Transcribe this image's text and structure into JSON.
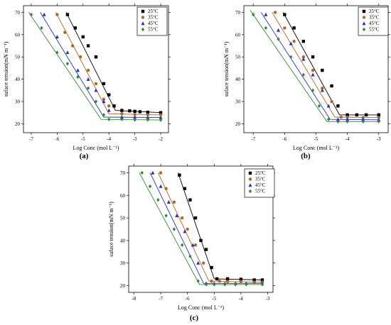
{
  "figure": {
    "panel_labels": [
      "(a)",
      "(b)",
      "(c)"
    ]
  },
  "chart_data": [
    {
      "type": "scatter",
      "panel": "(a)",
      "xlabel": "Log Conc (mol L⁻¹)",
      "ylabel": "suface tension(mN m⁻¹)",
      "xlim": [
        -7.3,
        -1.7
      ],
      "ylim": [
        16,
        73
      ],
      "xticks": [
        -7,
        -6,
        -5,
        -4,
        -3,
        -2
      ],
      "yticks": [
        20,
        30,
        40,
        50,
        60,
        70
      ],
      "legend_position": "top-right",
      "colors": [
        "#000000",
        "#b5651d",
        "#1f2fd6",
        "#2f8a2f"
      ],
      "markers": [
        "square",
        "circle",
        "triangle",
        "diamond"
      ],
      "series": [
        {
          "name": "25°C",
          "x": [
            -5.6,
            -5.3,
            -5.0,
            -4.8,
            -4.5,
            -4.2,
            -4.0,
            -3.8,
            -3.5,
            -3.2,
            -3.0,
            -2.8,
            -2.5,
            -2.0
          ],
          "y": [
            69,
            63,
            59,
            55,
            50,
            38,
            33,
            28,
            26,
            25.8,
            25.6,
            25.4,
            25.2,
            25
          ],
          "fit": [
            [
              -5.65,
              70
            ],
            [
              -3.75,
              26
            ],
            [
              -2.0,
              25
            ]
          ]
        },
        {
          "name": "35°C",
          "x": [
            -6.0,
            -5.7,
            -5.4,
            -5.1,
            -4.8,
            -4.5,
            -4.2,
            -4.0,
            -3.5,
            -3.0,
            -2.5,
            -2.0
          ],
          "y": [
            69,
            61,
            55,
            50,
            44,
            38,
            31,
            28,
            24.5,
            24.2,
            24,
            24
          ],
          "fit": [
            [
              -6.05,
              70
            ],
            [
              -4.0,
              24.5
            ],
            [
              -2.0,
              24
            ]
          ]
        },
        {
          "name": "45°C",
          "x": [
            -6.5,
            -6.0,
            -5.6,
            -5.2,
            -4.8,
            -4.5,
            -4.2,
            -4.0,
            -3.5,
            -3.0,
            -2.5,
            -2.0
          ],
          "y": [
            69,
            59,
            52,
            44,
            40,
            35,
            30,
            26,
            23,
            23,
            22.8,
            22.8
          ],
          "fit": [
            [
              -6.65,
              70
            ],
            [
              -4.2,
              23
            ],
            [
              -2.0,
              22.8
            ]
          ]
        },
        {
          "name": "55°C",
          "x": [
            -7.0,
            -6.6,
            -6.0,
            -5.6,
            -5.2,
            -4.8,
            -4.5,
            -4.2,
            -4.0,
            -3.5,
            -3.0,
            -2.5,
            -2.0
          ],
          "y": [
            69,
            63,
            52,
            47,
            41,
            36,
            30,
            24,
            22,
            22,
            21.8,
            21.8,
            21.7
          ],
          "fit": [
            [
              -7.1,
              70
            ],
            [
              -4.3,
              22
            ],
            [
              -2.0,
              21.7
            ]
          ]
        }
      ]
    },
    {
      "type": "scatter",
      "panel": "(b)",
      "xlabel": "Log Conc (mol L⁻¹)",
      "ylabel": "suface tension(mN m⁻¹)",
      "xlim": [
        -7.3,
        -2.7
      ],
      "ylim": [
        16,
        73
      ],
      "xticks": [
        -7,
        -6,
        -5,
        -4,
        -3
      ],
      "yticks": [
        20,
        30,
        40,
        50,
        60,
        70
      ],
      "legend_position": "top-right",
      "colors": [
        "#000000",
        "#b5651d",
        "#1f2fd6",
        "#2f8a2f"
      ],
      "markers": [
        "square",
        "circle",
        "triangle",
        "diamond"
      ],
      "series": [
        {
          "name": "25°C",
          "x": [
            -6.0,
            -5.7,
            -5.4,
            -5.1,
            -4.8,
            -4.5,
            -4.3,
            -4.0,
            -3.7,
            -3.4,
            -3.0
          ],
          "y": [
            69,
            63,
            57,
            50,
            44,
            37,
            28,
            24,
            24,
            24,
            24
          ],
          "fit": [
            [
              -6.05,
              70
            ],
            [
              -4.25,
              24
            ],
            [
              -3.0,
              24
            ]
          ]
        },
        {
          "name": "35°C",
          "x": [
            -6.3,
            -6.0,
            -5.7,
            -5.4,
            -5.1,
            -4.8,
            -4.5,
            -4.2,
            -4.0,
            -3.5,
            -3.0
          ],
          "y": [
            70,
            63,
            57,
            50,
            44,
            36,
            30,
            23,
            23,
            22.8,
            22.8
          ],
          "fit": [
            [
              -6.4,
              70
            ],
            [
              -4.4,
              23
            ],
            [
              -3.0,
              22.8
            ]
          ]
        },
        {
          "name": "45°C",
          "x": [
            -6.6,
            -6.2,
            -5.8,
            -5.4,
            -5.1,
            -4.8,
            -4.6,
            -4.3,
            -4.0,
            -3.5,
            -3.0
          ],
          "y": [
            69,
            62,
            56,
            49,
            42,
            35,
            28,
            22,
            22,
            22,
            21.8
          ],
          "fit": [
            [
              -6.75,
              70
            ],
            [
              -4.55,
              22
            ],
            [
              -3.0,
              21.8
            ]
          ]
        },
        {
          "name": "55°C",
          "x": [
            -7.0,
            -6.6,
            -6.2,
            -5.8,
            -5.4,
            -5.1,
            -4.9,
            -4.6,
            -4.3,
            -4.0,
            -3.5,
            -3.0
          ],
          "y": [
            69,
            63,
            58,
            50,
            42,
            35,
            28,
            22,
            21,
            21,
            21,
            21
          ],
          "fit": [
            [
              -7.1,
              71
            ],
            [
              -4.65,
              21
            ],
            [
              -3.0,
              21
            ]
          ]
        }
      ]
    },
    {
      "type": "scatter",
      "panel": "(c)",
      "xlabel": "Log Conc (mol L⁻¹)",
      "ylabel": "suface tension(mN m⁻¹)",
      "xlim": [
        -8.2,
        -2.8
      ],
      "ylim": [
        17,
        73
      ],
      "xticks": [
        -8,
        -7,
        -6,
        -5,
        -4,
        -3
      ],
      "yticks": [
        20,
        30,
        40,
        50,
        60,
        70
      ],
      "legend_position": "top-right",
      "colors": [
        "#000000",
        "#b5651d",
        "#1f2fd6",
        "#2f8a2f"
      ],
      "markers": [
        "square",
        "circle",
        "triangle",
        "diamond"
      ],
      "series": [
        {
          "name": "25°C",
          "x": [
            -6.3,
            -6.1,
            -5.9,
            -5.7,
            -5.5,
            -5.3,
            -5.1,
            -4.9,
            -4.5,
            -4.0,
            -3.5,
            -3.2
          ],
          "y": [
            69,
            63,
            58,
            50,
            40,
            36,
            28,
            23,
            23,
            22.8,
            22.5,
            22.5
          ],
          "fit": [
            [
              -6.35,
              70
            ],
            [
              -5.0,
              23
            ],
            [
              -3.2,
              22.5
            ]
          ]
        },
        {
          "name": "35°C",
          "x": [
            -7.0,
            -6.8,
            -6.5,
            -6.2,
            -6.0,
            -5.7,
            -5.4,
            -5.1,
            -4.8,
            -4.5,
            -4.0,
            -3.5,
            -3.2
          ],
          "y": [
            70,
            63,
            57,
            50,
            45,
            38,
            30,
            22,
            22,
            21.8,
            21.8,
            21.5,
            21.5
          ],
          "fit": [
            [
              -7.1,
              70
            ],
            [
              -5.2,
              22
            ],
            [
              -3.2,
              21.5
            ]
          ]
        },
        {
          "name": "45°C",
          "x": [
            -7.3,
            -7.0,
            -6.7,
            -6.4,
            -6.1,
            -5.8,
            -5.6,
            -5.3,
            -5.0,
            -4.6,
            -4.2,
            -3.8,
            -3.2
          ],
          "y": [
            70,
            64,
            57,
            51,
            44,
            38,
            30,
            21,
            21,
            21,
            21,
            21,
            21
          ],
          "fit": [
            [
              -7.4,
              70
            ],
            [
              -5.4,
              21
            ],
            [
              -3.2,
              21
            ]
          ]
        },
        {
          "name": "55°C",
          "x": [
            -7.7,
            -7.4,
            -7.1,
            -6.8,
            -6.5,
            -6.2,
            -5.9,
            -5.6,
            -5.3,
            -5.0,
            -4.6,
            -4.2,
            -3.8,
            -3.2
          ],
          "y": [
            70,
            64,
            58,
            51,
            45,
            38,
            33,
            22,
            20.5,
            20.5,
            20.5,
            20.5,
            20.5,
            20.5
          ],
          "fit": [
            [
              -7.8,
              70
            ],
            [
              -5.55,
              20.5
            ],
            [
              -3.2,
              20.5
            ]
          ]
        }
      ]
    }
  ]
}
